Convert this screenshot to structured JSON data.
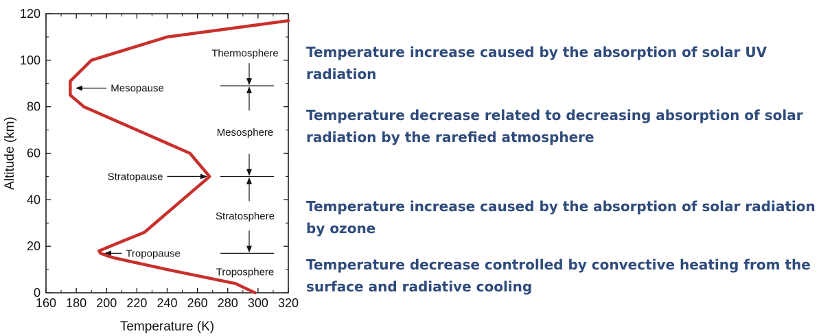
{
  "chart_data": {
    "type": "line",
    "xlabel": "Temperature (K)",
    "ylabel": "Altitude (km)",
    "xlim": [
      160,
      320
    ],
    "ylim": [
      0,
      120
    ],
    "x_ticks": [
      160,
      180,
      200,
      220,
      240,
      260,
      280,
      300,
      320
    ],
    "y_ticks": [
      0,
      20,
      40,
      60,
      80,
      100,
      120
    ],
    "grid": false,
    "series_color": "#c8302c",
    "series": [
      {
        "x": [
          298,
          285,
          240,
          205,
          200,
          196,
          195,
          206,
          225,
          268,
          255,
          220,
          185,
          176,
          176,
          190,
          240,
          320
        ],
        "y": [
          0,
          4,
          10,
          15,
          16,
          17,
          18,
          21,
          26,
          50,
          60,
          70,
          80,
          85,
          91,
          100,
          110,
          117
        ]
      }
    ],
    "annotations": [
      {
        "text": "Mesopause",
        "arrow_tip": [
          180,
          88
        ],
        "arrow_from": [
          200,
          88
        ]
      },
      {
        "text": "Stratopause",
        "arrow_tip": [
          266,
          50
        ],
        "arrow_from": [
          240,
          50
        ]
      },
      {
        "text": "Tropopause",
        "arrow_tip": [
          199,
          17
        ],
        "arrow_from": [
          210,
          17
        ]
      }
    ],
    "layers": [
      {
        "name": "Thermosphere",
        "label_alt": 103
      },
      {
        "name": "Mesosphere",
        "label_alt": 69
      },
      {
        "name": "Stratosphere",
        "label_alt": 33
      },
      {
        "name": "Troposphere",
        "label_alt": 9
      }
    ],
    "boundaries": [
      {
        "alt": 89,
        "arrows": [
          "down",
          "up"
        ]
      },
      {
        "alt": 50,
        "arrows": [
          "down",
          "up"
        ]
      },
      {
        "alt": 17,
        "arrows": [
          "down"
        ]
      }
    ]
  },
  "descriptions": [
    "Temperature increase caused by the absorption of solar UV radiation",
    "Temperature decrease related to decreasing absorption of solar radiation by the rarefied atmosphere",
    "Temperature increase caused by the absorption of solar radiation by ozone",
    "Temperature decrease controlled by convective heating from the surface and radiative cooling"
  ],
  "colors": {
    "text_accent": "#2f4b7c",
    "curve": "#c8302c"
  }
}
